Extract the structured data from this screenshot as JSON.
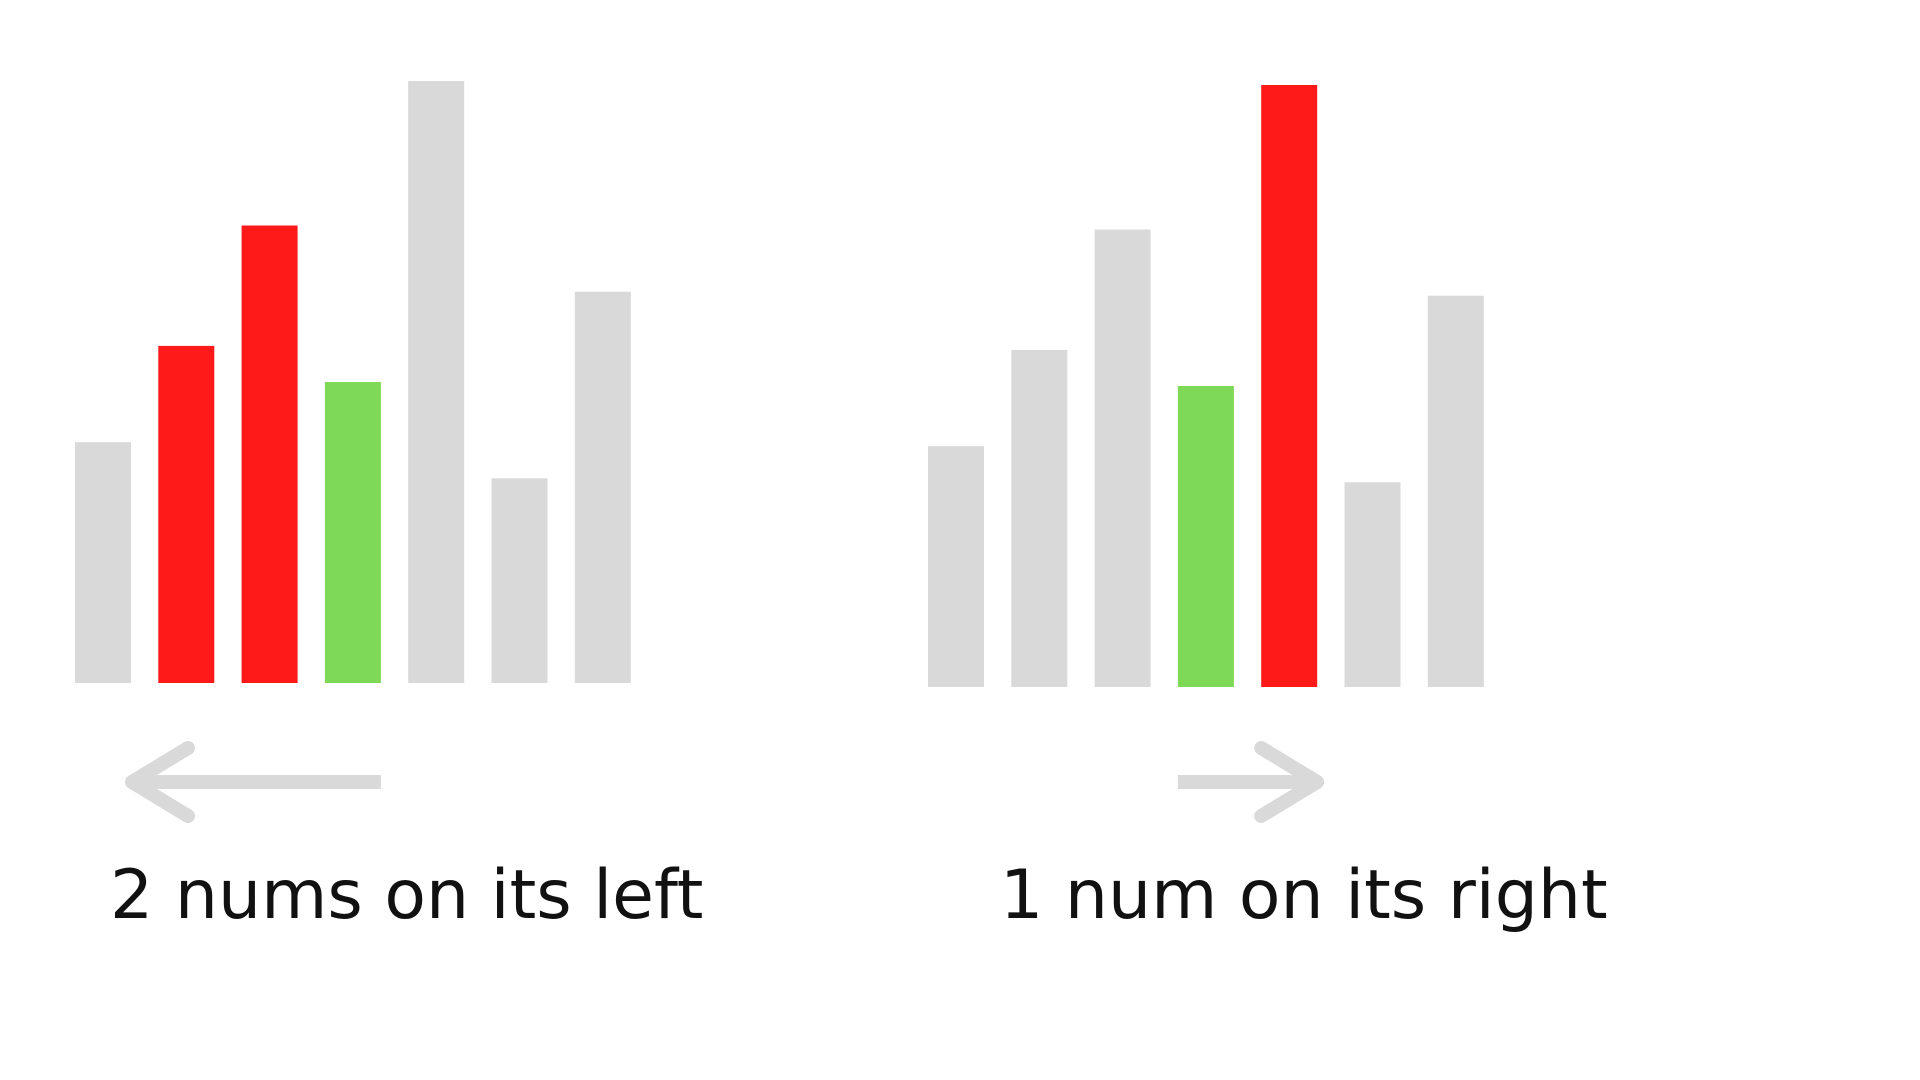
{
  "diagrams": [
    {
      "caption": "2 nums on its left",
      "direction": "left",
      "bars": [
        {
          "value": 4.0,
          "state": "neutral"
        },
        {
          "value": 5.6,
          "state": "highlight"
        },
        {
          "value": 7.6,
          "state": "highlight"
        },
        {
          "value": 5.0,
          "state": "current"
        },
        {
          "value": 10.0,
          "state": "neutral"
        },
        {
          "value": 3.4,
          "state": "neutral"
        },
        {
          "value": 6.5,
          "state": "neutral"
        }
      ]
    },
    {
      "caption": "1 num on its right",
      "direction": "right",
      "bars": [
        {
          "value": 4.0,
          "state": "neutral"
        },
        {
          "value": 5.6,
          "state": "neutral"
        },
        {
          "value": 7.6,
          "state": "neutral"
        },
        {
          "value": 5.0,
          "state": "current"
        },
        {
          "value": 10.0,
          "state": "highlight"
        },
        {
          "value": 3.4,
          "state": "neutral"
        },
        {
          "value": 6.5,
          "state": "neutral"
        }
      ]
    }
  ],
  "colors": {
    "neutral": "#d9d9d9",
    "highlight": "#ff1a1a",
    "current": "#7ed957",
    "arrow": "#d9d9d9"
  }
}
